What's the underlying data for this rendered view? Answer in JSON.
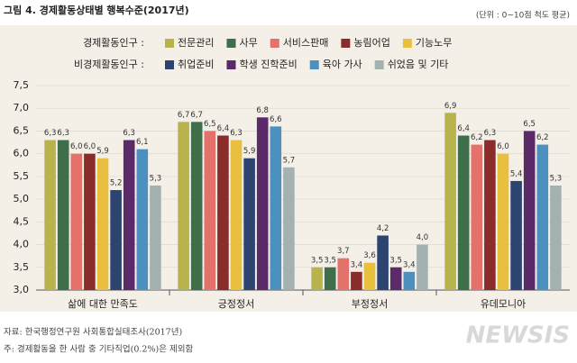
{
  "chart_data": {
    "type": "bar",
    "title": "그림 4. 경제활동상태별 행복수준(2017년)",
    "subtitle": "(단위 : 0~10점 척도 평균)",
    "legend_groups": [
      "경제활동인구 :",
      "비경제활동인구 :"
    ],
    "categories": [
      "삶에 대한 만족도",
      "긍정정서",
      "부정정서",
      "유데모니아"
    ],
    "series": [
      {
        "name": "전문관리",
        "color": "#b8b34c",
        "group": 0,
        "values": [
          6.3,
          6.7,
          3.5,
          6.9
        ],
        "value_labels": [
          "6,3",
          "6,7",
          "3,5",
          "6,9"
        ]
      },
      {
        "name": "사무",
        "color": "#3f6e4b",
        "group": 0,
        "values": [
          6.3,
          6.7,
          3.5,
          6.4
        ],
        "value_labels": [
          "6,3",
          "6,7",
          "3,5",
          "6,4"
        ]
      },
      {
        "name": "서비스판매",
        "color": "#e5716b",
        "group": 0,
        "values": [
          6.0,
          6.5,
          3.7,
          6.2
        ],
        "value_labels": [
          "6,0",
          "6,5",
          "3,7",
          "6,2"
        ]
      },
      {
        "name": "농림어업",
        "color": "#8a2c2a",
        "group": 0,
        "values": [
          6.0,
          6.4,
          3.4,
          6.3
        ],
        "value_labels": [
          "6,0",
          "6,4",
          "3,4",
          "6,3"
        ]
      },
      {
        "name": "기능노무",
        "color": "#e9bf3f",
        "group": 0,
        "values": [
          5.9,
          6.3,
          3.6,
          6.0
        ],
        "value_labels": [
          "5,9",
          "6,3",
          "3,6",
          "6,0"
        ]
      },
      {
        "name": "취업준비",
        "color": "#2d4470",
        "group": 1,
        "values": [
          5.2,
          5.9,
          4.2,
          5.4
        ],
        "value_labels": [
          "5,2",
          "5,9",
          "4,2",
          "5,4"
        ]
      },
      {
        "name": "학생 진학준비",
        "color": "#5b2b69",
        "group": 1,
        "values": [
          6.3,
          6.8,
          3.5,
          6.5
        ],
        "value_labels": [
          "6,3",
          "6,8",
          "3,5",
          "6,5"
        ]
      },
      {
        "name": "육아 가사",
        "color": "#4b90bf",
        "group": 1,
        "values": [
          6.1,
          6.6,
          3.4,
          6.2
        ],
        "value_labels": [
          "6,1",
          "6,6",
          "3,4",
          "6,2"
        ]
      },
      {
        "name": "쉬었음 및 기타",
        "color": "#a3b2b0",
        "group": 1,
        "values": [
          5.3,
          5.7,
          4.0,
          5.3
        ],
        "value_labels": [
          "5,3",
          "5,7",
          "4,0",
          "5,3"
        ]
      }
    ],
    "ylim": [
      3.0,
      7.5
    ],
    "yticks": [
      {
        "value": 3.0,
        "label": "3,0"
      },
      {
        "value": 3.5,
        "label": "3,5"
      },
      {
        "value": 4.0,
        "label": "4,0"
      },
      {
        "value": 4.5,
        "label": "4,5"
      },
      {
        "value": 5.0,
        "label": "5,0"
      },
      {
        "value": 5.5,
        "label": "5,5"
      },
      {
        "value": 6.0,
        "label": "6,0"
      },
      {
        "value": 6.5,
        "label": "6,5"
      },
      {
        "value": 7.0,
        "label": "7,0"
      },
      {
        "value": 7.5,
        "label": "7,5"
      }
    ],
    "grid": true,
    "source": "자료: 한국행정연구원 사회통합실태조사(2017년)",
    "note": "주: 경제활동을 한 사람 중 기타직업(0.2%)은 제외함",
    "watermark": "NEWSIS"
  }
}
